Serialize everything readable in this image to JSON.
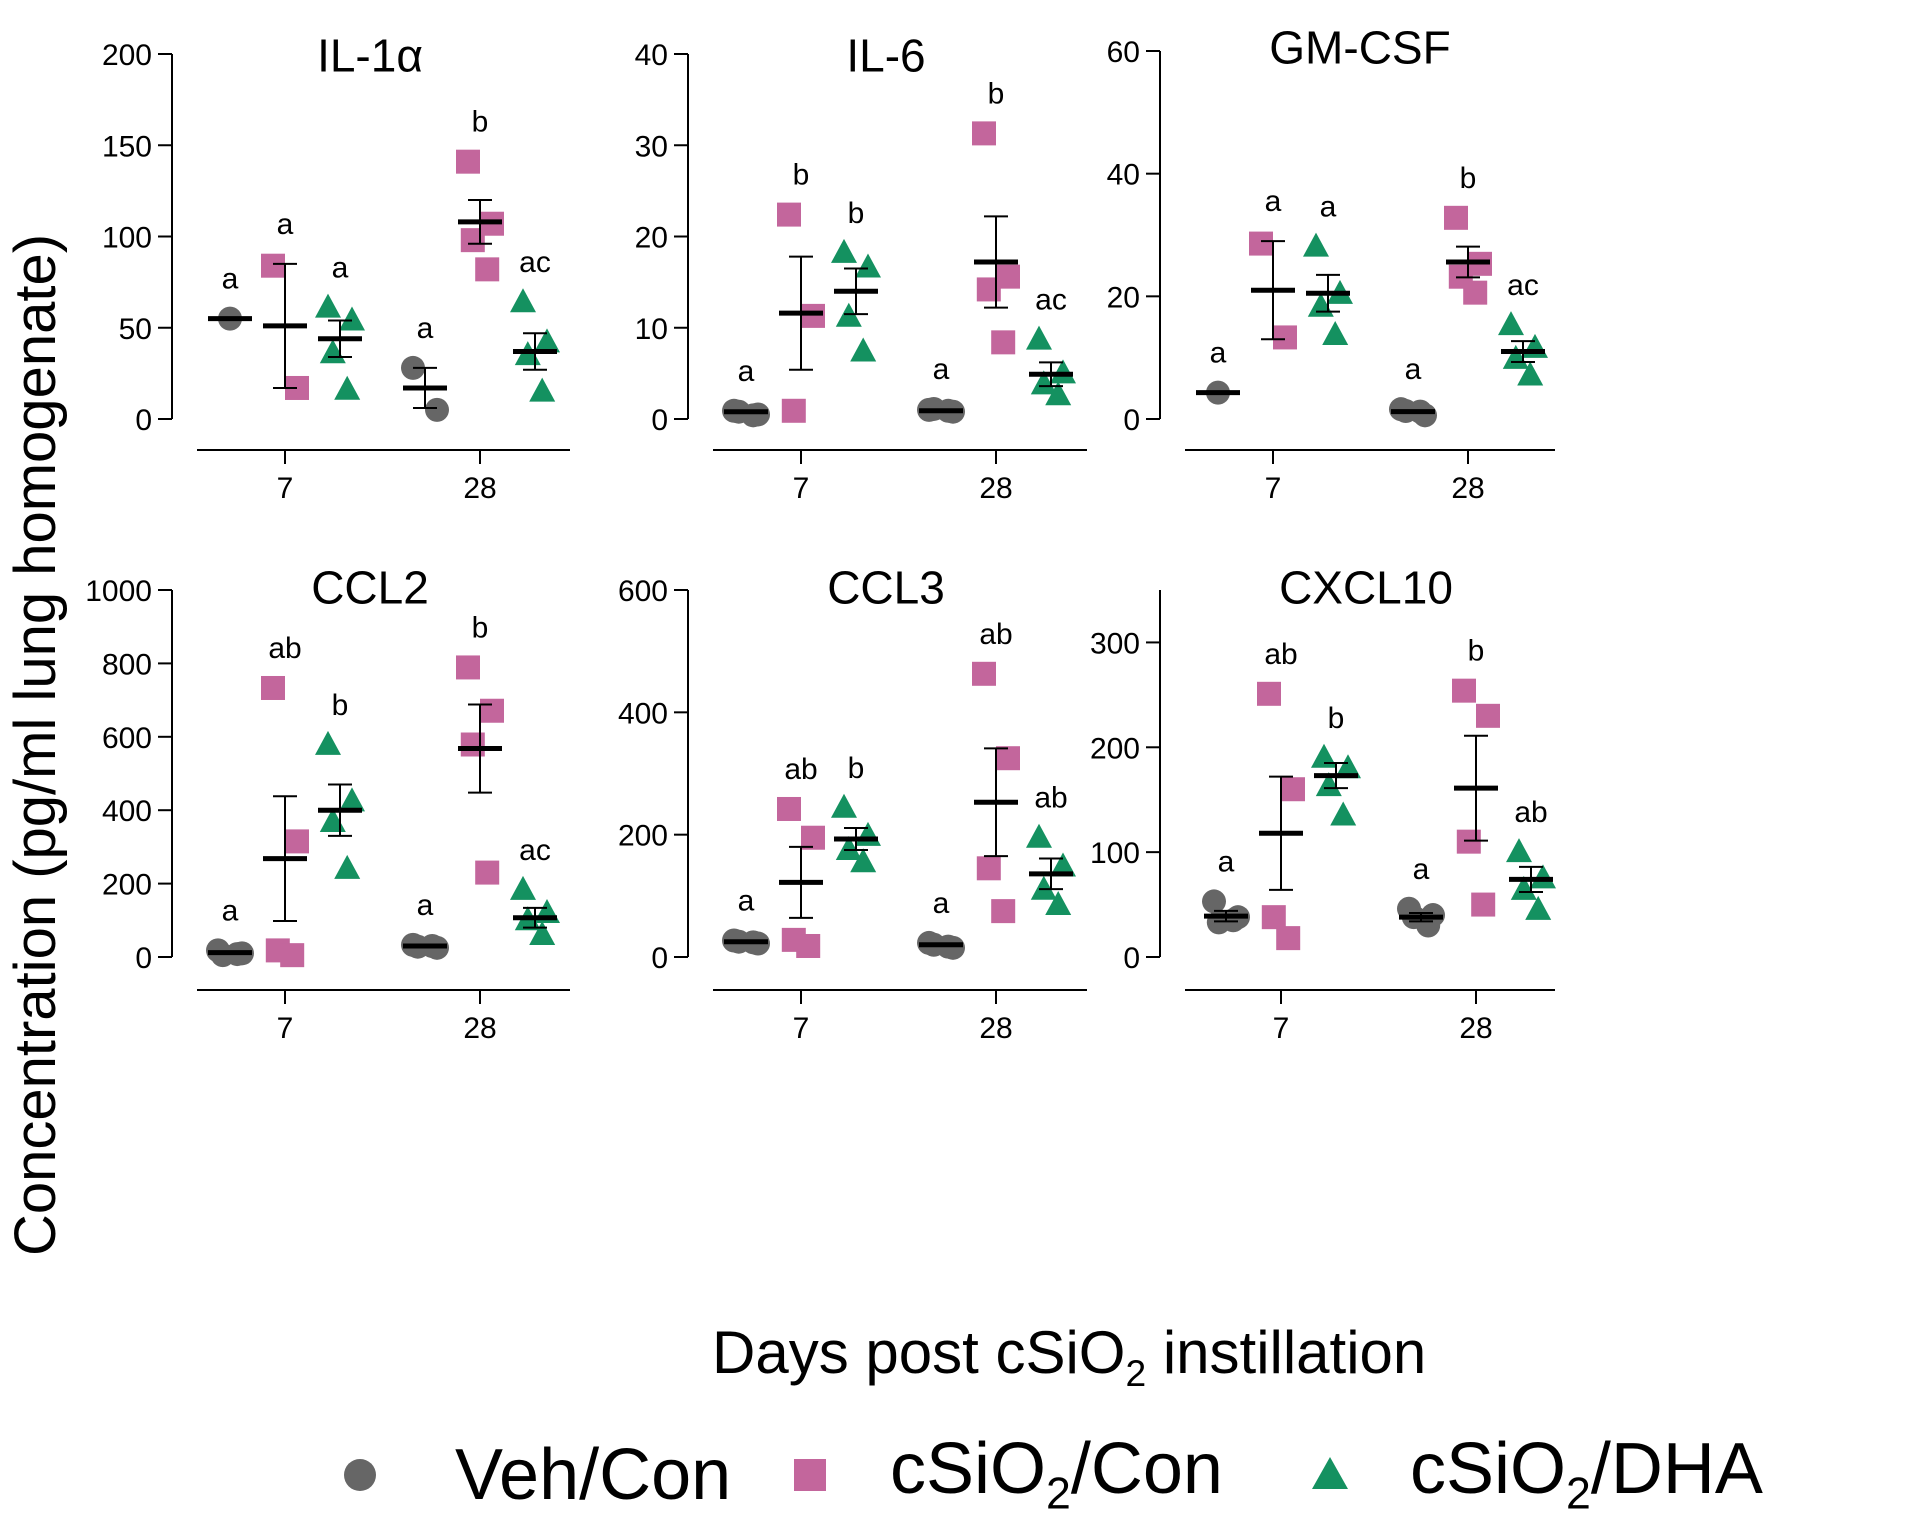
{
  "figure": {
    "ylabel": "Concentration (pg/ml lung homogenate)",
    "xlabel_pre": "Days post cSiO",
    "xlabel_sub": "2",
    "xlabel_post": " instillation"
  },
  "legend": [
    {
      "name_pre": "Veh/Con",
      "name_sub": "",
      "name_post": "",
      "color": "#666666",
      "marker": "circle"
    },
    {
      "name_pre": "cSiO",
      "name_sub": "2",
      "name_post": "/Con",
      "color": "#c3669c",
      "marker": "square"
    },
    {
      "name_pre": "cSiO",
      "name_sub": "2",
      "name_post": "/DHA",
      "color": "#149160",
      "marker": "triangle"
    }
  ],
  "chart_data": [
    {
      "type": "scatter",
      "title": "IL-1α",
      "ylim": [
        0,
        200
      ],
      "yticks": [
        0,
        50,
        100,
        150,
        200
      ],
      "categories": [
        "7",
        "28"
      ],
      "groups": [
        {
          "day": "7",
          "series": "Veh/Con",
          "points": [
            55
          ],
          "mean": 55,
          "sem": null,
          "letter": "a"
        },
        {
          "day": "7",
          "series": "cSiO2/Con",
          "points": [
            84,
            17
          ],
          "mean": 51,
          "sem": 34,
          "letter": "a"
        },
        {
          "day": "7",
          "series": "cSiO2/DHA",
          "points": [
            61,
            54,
            36,
            16
          ],
          "mean": 44,
          "sem": 10,
          "letter": "a"
        },
        {
          "day": "28",
          "series": "Veh/Con",
          "points": [
            28,
            5
          ],
          "mean": 17,
          "sem": 11,
          "letter": "a"
        },
        {
          "day": "28",
          "series": "cSiO2/Con",
          "points": [
            141,
            107,
            98,
            82
          ],
          "mean": 108,
          "sem": 12,
          "letter": "b"
        },
        {
          "day": "28",
          "series": "cSiO2/DHA",
          "points": [
            64,
            42,
            35,
            15
          ],
          "mean": 37,
          "sem": 10,
          "letter": "ac"
        }
      ]
    },
    {
      "type": "scatter",
      "title": "IL-6",
      "ylim": [
        0,
        40
      ],
      "yticks": [
        0,
        10,
        20,
        30,
        40
      ],
      "categories": [
        "7",
        "28"
      ],
      "groups": [
        {
          "day": "7",
          "series": "Veh/Con",
          "points": [
            0.9,
            0.5,
            0.8,
            0.4
          ],
          "mean": 0.8,
          "sem": null,
          "letter": "a"
        },
        {
          "day": "7",
          "series": "cSiO2/Con",
          "points": [
            22.4,
            11.3,
            0.9
          ],
          "mean": 11.6,
          "sem": 6.2,
          "letter": "b"
        },
        {
          "day": "7",
          "series": "cSiO2/DHA",
          "points": [
            18.2,
            16.6,
            11.2,
            7.4
          ],
          "mean": 14,
          "sem": 2.5,
          "letter": "b"
        },
        {
          "day": "28",
          "series": "Veh/Con",
          "points": [
            1.0,
            0.8,
            1.1,
            0.9
          ],
          "mean": 0.9,
          "sem": null,
          "letter": "a"
        },
        {
          "day": "28",
          "series": "cSiO2/Con",
          "points": [
            31.3,
            15.6,
            14.2,
            8.4
          ],
          "mean": 17.2,
          "sem": 5,
          "letter": "b"
        },
        {
          "day": "28",
          "series": "cSiO2/DHA",
          "points": [
            8.7,
            5.0,
            3.8,
            2.6
          ],
          "mean": 4.9,
          "sem": 1.3,
          "letter": "ac"
        }
      ]
    },
    {
      "type": "scatter",
      "title": "GM-CSF",
      "ylim": [
        0,
        60
      ],
      "yticks": [
        0,
        20,
        40,
        60
      ],
      "categories": [
        "7",
        "28"
      ],
      "groups": [
        {
          "day": "7",
          "series": "Veh/Con",
          "points": [
            4.3
          ],
          "mean": 4.3,
          "sem": null,
          "letter": "a"
        },
        {
          "day": "7",
          "series": "cSiO2/Con",
          "points": [
            28.6,
            13.3
          ],
          "mean": 21,
          "sem": 8,
          "letter": "a"
        },
        {
          "day": "7",
          "series": "cSiO2/DHA",
          "points": [
            28.1,
            20.4,
            18.3,
            13.7
          ],
          "mean": 20.5,
          "sem": 3,
          "letter": "a"
        },
        {
          "day": "28",
          "series": "Veh/Con",
          "points": [
            1.6,
            0.6,
            1.3,
            1.2
          ],
          "mean": 1.2,
          "sem": null,
          "letter": "a"
        },
        {
          "day": "28",
          "series": "cSiO2/Con",
          "points": [
            32.8,
            25.3,
            23.2,
            20.6
          ],
          "mean": 25.6,
          "sem": 2.5,
          "letter": "b"
        },
        {
          "day": "28",
          "series": "cSiO2/DHA",
          "points": [
            15.3,
            11.6,
            9.8,
            7.1
          ],
          "mean": 11,
          "sem": 1.7,
          "letter": "ac"
        }
      ]
    },
    {
      "type": "scatter",
      "title": "CCL2",
      "ylim": [
        0,
        1000
      ],
      "yticks": [
        0,
        200,
        400,
        600,
        800,
        1000
      ],
      "categories": [
        "7",
        "28"
      ],
      "groups": [
        {
          "day": "7",
          "series": "Veh/Con",
          "points": [
            18,
            10,
            5,
            8
          ],
          "mean": 12,
          "sem": null,
          "letter": "a"
        },
        {
          "day": "7",
          "series": "cSiO2/Con",
          "points": [
            733,
            315,
            18,
            5
          ],
          "mean": 268,
          "sem": 170,
          "letter": "ab"
        },
        {
          "day": "7",
          "series": "cSiO2/DHA",
          "points": [
            578,
            424,
            368,
            240
          ],
          "mean": 400,
          "sem": 70,
          "letter": "b"
        },
        {
          "day": "28",
          "series": "Veh/Con",
          "points": [
            33,
            25,
            28,
            30
          ],
          "mean": 30,
          "sem": null,
          "letter": "a"
        },
        {
          "day": "28",
          "series": "cSiO2/Con",
          "points": [
            789,
            671,
            579,
            230
          ],
          "mean": 568,
          "sem": 120,
          "letter": "b"
        },
        {
          "day": "28",
          "series": "cSiO2/DHA",
          "points": [
            183,
            120,
            100,
            60
          ],
          "mean": 107,
          "sem": 27,
          "letter": "ac"
        }
      ]
    },
    {
      "type": "scatter",
      "title": "CCL3",
      "ylim": [
        0,
        600
      ],
      "yticks": [
        0,
        200,
        400,
        600
      ],
      "categories": [
        "7",
        "28"
      ],
      "groups": [
        {
          "day": "7",
          "series": "Veh/Con",
          "points": [
            27,
            22,
            25,
            24
          ],
          "mean": 25,
          "sem": null,
          "letter": "a"
        },
        {
          "day": "7",
          "series": "cSiO2/Con",
          "points": [
            242,
            195,
            28,
            18
          ],
          "mean": 122,
          "sem": 58,
          "letter": "ab"
        },
        {
          "day": "7",
          "series": "cSiO2/DHA",
          "points": [
            244,
            198,
            175,
            155
          ],
          "mean": 193,
          "sem": 18,
          "letter": "b"
        },
        {
          "day": "28",
          "series": "Veh/Con",
          "points": [
            23,
            15,
            20,
            17
          ],
          "mean": 20,
          "sem": null,
          "letter": "a"
        },
        {
          "day": "28",
          "series": "cSiO2/Con",
          "points": [
            463,
            325,
            145,
            75
          ],
          "mean": 253,
          "sem": 88,
          "letter": "ab"
        },
        {
          "day": "28",
          "series": "cSiO2/DHA",
          "points": [
            195,
            148,
            110,
            85
          ],
          "mean": 136,
          "sem": 25,
          "letter": "ab"
        }
      ]
    },
    {
      "type": "scatter",
      "title": "CXCL10",
      "ylim": [
        0,
        350
      ],
      "yticks": [
        0,
        100,
        200,
        300
      ],
      "categories": [
        "7",
        "28"
      ],
      "groups": [
        {
          "day": "7",
          "series": "Veh/Con",
          "points": [
            53,
            38,
            33,
            35
          ],
          "mean": 39,
          "sem": 5,
          "letter": "a"
        },
        {
          "day": "7",
          "series": "cSiO2/Con",
          "points": [
            251,
            160,
            38,
            18
          ],
          "mean": 118,
          "sem": 54,
          "letter": "ab"
        },
        {
          "day": "7",
          "series": "cSiO2/DHA",
          "points": [
            190,
            180,
            163,
            135
          ],
          "mean": 173,
          "sem": 12,
          "letter": "b"
        },
        {
          "day": "28",
          "series": "Veh/Con",
          "points": [
            46,
            40,
            38,
            30
          ],
          "mean": 38,
          "sem": 4,
          "letter": "a"
        },
        {
          "day": "28",
          "series": "cSiO2/Con",
          "points": [
            254,
            230,
            110,
            50
          ],
          "mean": 161,
          "sem": 50,
          "letter": "b"
        },
        {
          "day": "28",
          "series": "cSiO2/DHA",
          "points": [
            100,
            75,
            64,
            45
          ],
          "mean": 74,
          "sem": 12,
          "letter": "ab"
        }
      ]
    }
  ]
}
